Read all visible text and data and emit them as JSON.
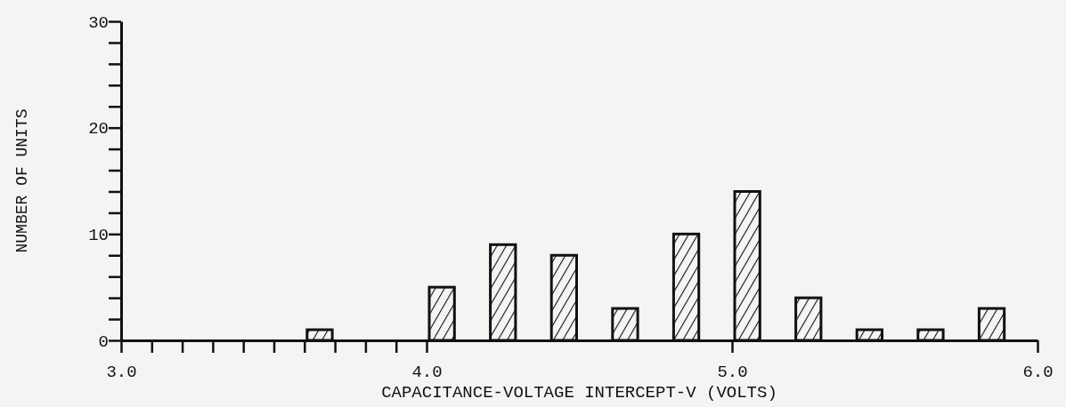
{
  "chart_data": {
    "type": "histogram",
    "xlabel": "CAPACITANCE-VOLTAGE INTERCEPT-V (VOLTS)",
    "ylabel": "NUMBER OF UNITS",
    "bins": [
      3.0,
      3.1,
      3.2,
      3.3,
      3.4,
      3.5,
      3.6,
      3.7,
      3.8,
      3.9,
      4.0,
      4.1,
      4.2,
      4.3,
      4.4,
      4.5,
      4.6,
      4.7,
      4.8,
      4.9,
      5.0,
      5.1,
      5.2,
      5.3,
      5.4,
      5.5,
      5.6,
      5.7,
      5.8,
      5.9,
      6.0
    ],
    "values": [
      0,
      0,
      0,
      0,
      0,
      0,
      1,
      0,
      0,
      0,
      5,
      0,
      9,
      0,
      8,
      0,
      3,
      0,
      10,
      0,
      14,
      0,
      4,
      0,
      1,
      0,
      1,
      0,
      3,
      0
    ],
    "color": "#111111",
    "xlim": [
      3.0,
      6.0
    ],
    "ylim": [
      0,
      30
    ],
    "xticks": [
      {
        "value": 3.0,
        "label": "3.0"
      },
      {
        "value": 3.1,
        "label": null
      },
      {
        "value": 3.2,
        "label": null
      },
      {
        "value": 3.3,
        "label": null
      },
      {
        "value": 3.4,
        "label": null
      },
      {
        "value": 3.5,
        "label": null
      },
      {
        "value": 3.6,
        "label": null
      },
      {
        "value": 3.7,
        "label": null
      },
      {
        "value": 3.8,
        "label": null
      },
      {
        "value": 3.9,
        "label": null
      },
      {
        "value": 4.0,
        "label": "4.0"
      },
      {
        "value": 5.0,
        "label": "5.0"
      },
      {
        "value": 6.0,
        "label": "6.0"
      }
    ],
    "yticks": [
      0,
      {
        "value": 2,
        "label": null
      },
      {
        "value": 4,
        "label": null
      },
      {
        "value": 6,
        "label": null
      },
      {
        "value": 8,
        "label": null
      },
      10,
      {
        "value": 12,
        "label": null
      },
      {
        "value": 14,
        "label": null
      },
      {
        "value": 16,
        "label": null
      },
      {
        "value": 18,
        "label": null
      },
      20,
      {
        "value": 22,
        "label": null
      },
      {
        "value": 24,
        "label": null
      },
      {
        "value": 26,
        "label": null
      },
      {
        "value": 28,
        "label": null
      },
      30
    ],
    "grid": false,
    "legend": false
  }
}
